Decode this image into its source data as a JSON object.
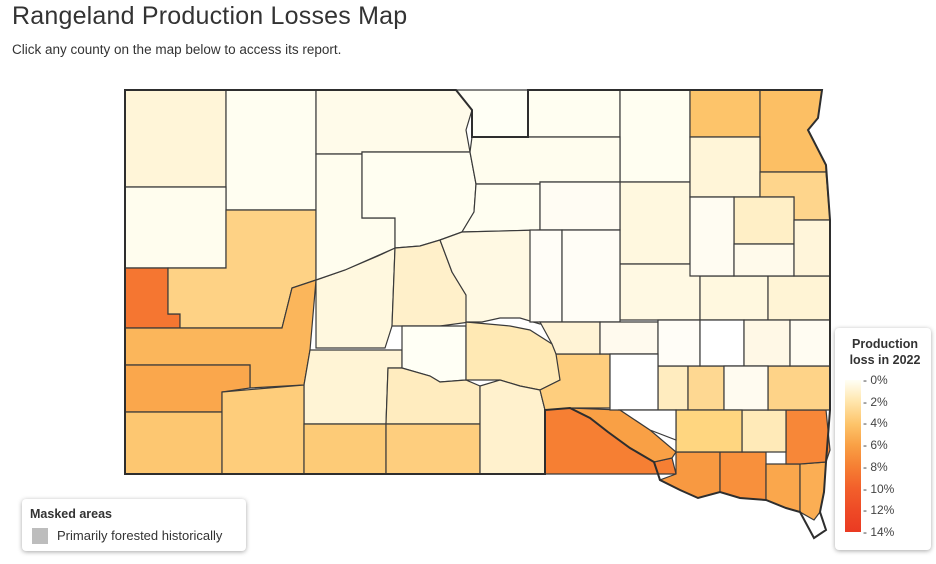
{
  "page": {
    "title": "Rangeland Production Losses Map",
    "subtitle": "Click any county on the map below to access its report."
  },
  "legend": {
    "title_line1": "Production",
    "title_line2": "loss in 2022",
    "labels": [
      "0%",
      "2%",
      "4%",
      "6%",
      "8%",
      "10%",
      "12%",
      "14%"
    ]
  },
  "mask": {
    "title": "Masked areas",
    "label": "Primarily forested historically",
    "swatch_color": "#bdbdbd"
  },
  "color_scale": {
    "stops": [
      "#fffff5",
      "#ffe6ad",
      "#fdc46a",
      "#f9a045",
      "#f67f33",
      "#f2602b",
      "#ee4a26",
      "#ea3a22"
    ],
    "max_percent": 14
  },
  "counties": [
    {
      "id": "nw-top",
      "loss": 0.8
    },
    {
      "id": "n2",
      "loss": 0.1
    },
    {
      "id": "n3",
      "loss": 0.3
    },
    {
      "id": "n4",
      "loss": 0.0
    },
    {
      "id": "n5",
      "loss": 0.1
    },
    {
      "id": "n6",
      "loss": 0.1
    },
    {
      "id": "ne1",
      "loss": 4.0
    },
    {
      "id": "ne2",
      "loss": 4.3
    },
    {
      "id": "w2",
      "loss": 0.2
    },
    {
      "id": "w3",
      "loss": 8.6
    },
    {
      "id": "w4",
      "loss": 3.2
    },
    {
      "id": "w5",
      "loss": 4.8
    },
    {
      "id": "w6",
      "loss": 5.6
    },
    {
      "id": "w7",
      "loss": 3.8
    },
    {
      "id": "c1",
      "loss": 0.6
    },
    {
      "id": "c2",
      "loss": 0.2
    },
    {
      "id": "c3",
      "loss": 0.1
    },
    {
      "id": "c4",
      "loss": 0.2
    },
    {
      "id": "c5",
      "loss": 0.1
    },
    {
      "id": "c6",
      "loss": 1.2
    },
    {
      "id": "c7",
      "loss": 0.9
    },
    {
      "id": "c8",
      "loss": 0.0
    },
    {
      "id": "c9",
      "loss": 1.8
    },
    {
      "id": "c10",
      "loss": 0.5
    },
    {
      "id": "c11",
      "loss": 1.5
    },
    {
      "id": "s1",
      "loss": 3.5
    },
    {
      "id": "s2",
      "loss": 3.6
    },
    {
      "id": "s3",
      "loss": 3.4
    },
    {
      "id": "s4",
      "loss": 1.1
    },
    {
      "id": "s5",
      "loss": 8.0
    },
    {
      "id": "s6",
      "loss": 6.0
    },
    {
      "id": "s7",
      "loss": 6.4
    },
    {
      "id": "s8",
      "loss": 7.0
    },
    {
      "id": "s9",
      "loss": 5.6
    },
    {
      "id": "s10",
      "loss": 5.2
    },
    {
      "id": "s11",
      "loss": 7.5
    },
    {
      "id": "e1",
      "loss": 0.6
    },
    {
      "id": "e2",
      "loss": 0.8
    },
    {
      "id": "e3",
      "loss": 3.0
    },
    {
      "id": "e4",
      "loss": 1.3
    },
    {
      "id": "e5",
      "loss": 0.5
    },
    {
      "id": "e6",
      "loss": 0.6
    },
    {
      "id": "e7",
      "loss": 0.9
    },
    {
      "id": "e8",
      "loss": 3.4
    },
    {
      "id": "e9",
      "loss": 1.5
    },
    {
      "id": "e10",
      "loss": 2.8
    },
    {
      "id": "e11",
      "loss": 1.7
    },
    {
      "id": "e12",
      "loss": 3.1
    }
  ]
}
